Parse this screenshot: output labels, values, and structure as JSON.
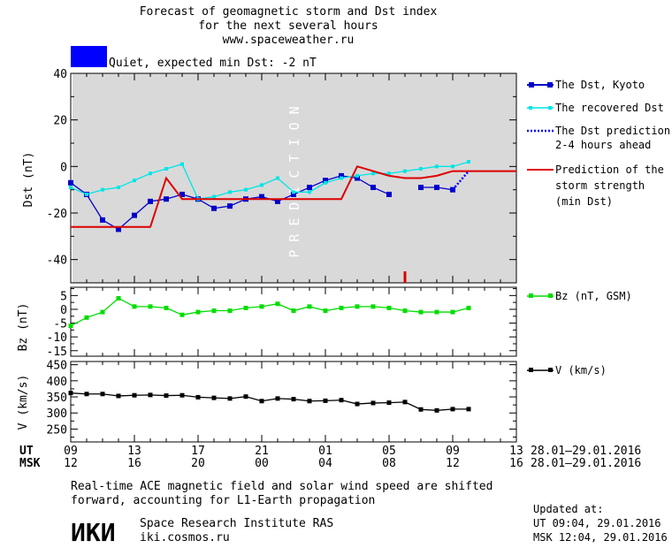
{
  "header": {
    "title_line1": "Forecast of geomagnetic storm and Dst index",
    "title_line2": "for the next several hours",
    "website": "www.spaceweather.ru"
  },
  "status": {
    "text": "Quiet, expected min Dst: -2 nT",
    "color": "#0000ff"
  },
  "chart_data": [
    {
      "panel": "dst",
      "type": "line",
      "ylabel": "Dst (nT)",
      "ylim": [
        -50,
        40
      ],
      "yticks": [
        40,
        20,
        0,
        -20,
        -40
      ],
      "xlim": [
        9,
        37
      ],
      "shaded_region": {
        "x": [
          9,
          37
        ],
        "label": "PREDICTION",
        "color": "#d9d9d9"
      },
      "series": [
        {
          "name": "The Dst, Kyoto",
          "color": "#0000cc",
          "x": [
            9,
            10,
            11,
            12,
            13,
            14,
            15,
            16,
            17,
            18,
            19,
            20,
            21,
            22,
            23,
            24,
            25,
            26,
            27,
            28,
            29,
            30,
            31,
            32,
            33,
            34
          ],
          "y": [
            -7,
            -12,
            -23,
            -27,
            -21,
            -15,
            -14,
            -12,
            -14,
            -18,
            -17,
            -14,
            -13,
            -15,
            -12,
            -9,
            -6,
            -4,
            -5,
            -9,
            -12,
            null,
            -9,
            -9,
            -10,
            null
          ]
        },
        {
          "name": "The recovered Dst",
          "color": "#00e5e5",
          "x": [
            9,
            10,
            11,
            12,
            13,
            14,
            15,
            16,
            17,
            18,
            19,
            20,
            21,
            22,
            23,
            24,
            25,
            26,
            27,
            28,
            29,
            30,
            31,
            32,
            33,
            34
          ],
          "y": [
            -9,
            -12,
            -10,
            -9,
            -6,
            -3,
            -1,
            1,
            -14,
            -13,
            -11,
            -10,
            -8,
            -5,
            -11,
            -11,
            -7,
            -5,
            -4,
            -3,
            -3,
            -2,
            -1,
            0,
            0,
            2
          ]
        },
        {
          "name": "The Dst prediction 2-4 hours ahead",
          "color": "#0000ff",
          "x": [
            33,
            34
          ],
          "y": [
            -10,
            -2
          ]
        },
        {
          "name": "Prediction of the storm strength (min Dst)",
          "color": "#dd0000",
          "x": [
            9,
            10,
            11,
            12,
            13,
            14,
            15,
            16,
            17,
            18,
            19,
            20,
            21,
            22,
            23,
            24,
            25,
            26,
            27,
            28,
            29,
            30,
            31,
            32,
            33,
            34,
            35,
            36,
            37
          ],
          "y": [
            -26,
            -26,
            -26,
            -26,
            -26,
            -26,
            -5,
            -14,
            -14,
            -14,
            -14,
            -14,
            -14,
            -14,
            -14,
            -14,
            -14,
            -14,
            0,
            -2,
            -4,
            -5,
            -5,
            -4,
            -2,
            -2,
            -2,
            -2,
            -2
          ]
        }
      ],
      "marker_x": 30,
      "legend_entries": [
        "The Dst, Kyoto",
        "The recovered Dst",
        "The Dst prediction",
        "2-4 hours ahead",
        "Prediction of the",
        "storm strength",
        "(min Dst)"
      ]
    },
    {
      "panel": "bz",
      "type": "line",
      "ylabel": "Bz (nT)",
      "ylim": [
        -17,
        8
      ],
      "yticks": [
        5,
        0,
        -5,
        -10,
        -15
      ],
      "xlim": [
        9,
        37
      ],
      "series": [
        {
          "name": "Bz (nT, GSM)",
          "color": "#00dd00",
          "x": [
            9,
            10,
            11,
            12,
            13,
            14,
            15,
            16,
            17,
            18,
            19,
            20,
            21,
            22,
            23,
            24,
            25,
            26,
            27,
            28,
            29,
            30,
            31,
            32,
            33,
            34
          ],
          "y": [
            -6,
            -3,
            -1,
            4,
            1,
            1,
            0.5,
            -2,
            -1,
            -0.5,
            -0.5,
            0.5,
            1,
            2,
            -0.5,
            1,
            -0.5,
            0.5,
            1,
            1,
            0.5,
            -0.5,
            -1,
            -1,
            -1,
            0.5
          ]
        }
      ]
    },
    {
      "panel": "v",
      "type": "line",
      "ylabel": "V (km/s)",
      "ylim": [
        210,
        460
      ],
      "yticks": [
        450,
        400,
        350,
        300,
        250
      ],
      "xlim": [
        9,
        37
      ],
      "series": [
        {
          "name": "V (km/s)",
          "color": "#000000",
          "x": [
            9,
            10,
            11,
            12,
            13,
            14,
            15,
            16,
            17,
            18,
            19,
            20,
            21,
            22,
            23,
            24,
            25,
            26,
            27,
            28,
            29,
            30,
            31,
            32,
            33,
            34
          ],
          "y": [
            362,
            359,
            359,
            353,
            355,
            356,
            354,
            355,
            349,
            347,
            345,
            351,
            337,
            345,
            343,
            337,
            338,
            340,
            328,
            331,
            332,
            334,
            311,
            308,
            312,
            312
          ]
        }
      ]
    }
  ],
  "x_axis": {
    "ut_label": "UT",
    "msk_label": "MSK",
    "ut_ticks": [
      "09",
      "13",
      "17",
      "21",
      "01",
      "05",
      "09",
      "13"
    ],
    "msk_ticks": [
      "12",
      "16",
      "20",
      "00",
      "04",
      "08",
      "12",
      "16"
    ],
    "date_range_ut": "28.01–29.01.2016",
    "date_range_msk": "28.01–29.01.2016"
  },
  "footer": {
    "note_line1": "Real-time ACE magnetic field and solar wind speed are shifted",
    "note_line2": "forward, accounting for L1-Earth propagation",
    "logo_text": "ИКИ",
    "institute": "Space Research Institute RAS",
    "institute_url": "iki.cosmos.ru",
    "updated_label": "Updated at:",
    "updated_ut": "UT  09:04, 29.01.2016",
    "updated_msk": "MSK 12:04, 29.01.2016"
  }
}
